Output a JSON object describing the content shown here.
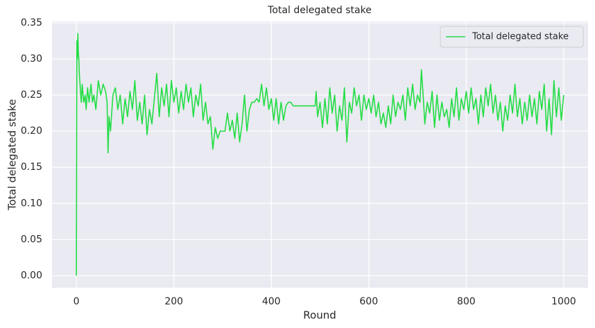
{
  "chart_data": {
    "type": "line",
    "title": "Total delegated stake",
    "x_label": "Round",
    "y_label": "Total delegated stake",
    "x": [
      0,
      1,
      2,
      3,
      4,
      5,
      6,
      8,
      10,
      12,
      15,
      18,
      20,
      23,
      26,
      30,
      33,
      36,
      40,
      45,
      50,
      55,
      60,
      63,
      65,
      67,
      70,
      75,
      80,
      85,
      90,
      95,
      100,
      105,
      110,
      115,
      120,
      125,
      130,
      135,
      140,
      145,
      150,
      155,
      160,
      165,
      170,
      175,
      180,
      185,
      190,
      195,
      200,
      205,
      210,
      215,
      220,
      225,
      230,
      235,
      240,
      245,
      250,
      255,
      260,
      265,
      270,
      275,
      280,
      285,
      290,
      295,
      300,
      305,
      310,
      315,
      320,
      325,
      330,
      335,
      340,
      345,
      350,
      355,
      360,
      365,
      370,
      375,
      380,
      385,
      390,
      395,
      400,
      405,
      410,
      415,
      420,
      425,
      430,
      435,
      440,
      445,
      450,
      460,
      470,
      480,
      490,
      492,
      495,
      500,
      505,
      510,
      515,
      520,
      525,
      530,
      535,
      540,
      545,
      550,
      555,
      560,
      565,
      570,
      575,
      580,
      585,
      590,
      595,
      600,
      605,
      610,
      615,
      620,
      625,
      630,
      635,
      640,
      645,
      650,
      655,
      660,
      665,
      670,
      675,
      680,
      685,
      690,
      695,
      700,
      705,
      708,
      712,
      715,
      720,
      725,
      730,
      735,
      740,
      745,
      750,
      755,
      760,
      765,
      770,
      775,
      780,
      785,
      790,
      795,
      800,
      805,
      810,
      815,
      820,
      825,
      830,
      835,
      840,
      845,
      850,
      855,
      860,
      865,
      870,
      875,
      880,
      885,
      890,
      895,
      900,
      905,
      910,
      915,
      920,
      925,
      930,
      935,
      940,
      945,
      950,
      955,
      960,
      965,
      970,
      975,
      980,
      985,
      990,
      995,
      1000
    ],
    "series": [
      {
        "name": "Total delegated stake",
        "color": "#22dd44",
        "values": [
          0,
          0.325,
          0.3,
          0.335,
          0.31,
          0.3,
          0.28,
          0.26,
          0.24,
          0.265,
          0.24,
          0.25,
          0.23,
          0.26,
          0.24,
          0.265,
          0.24,
          0.25,
          0.23,
          0.27,
          0.25,
          0.265,
          0.255,
          0.24,
          0.17,
          0.22,
          0.2,
          0.25,
          0.26,
          0.23,
          0.25,
          0.21,
          0.245,
          0.22,
          0.255,
          0.23,
          0.27,
          0.215,
          0.24,
          0.21,
          0.25,
          0.195,
          0.23,
          0.21,
          0.245,
          0.28,
          0.22,
          0.26,
          0.235,
          0.265,
          0.22,
          0.27,
          0.24,
          0.26,
          0.225,
          0.255,
          0.23,
          0.265,
          0.24,
          0.26,
          0.22,
          0.25,
          0.235,
          0.265,
          0.215,
          0.24,
          0.21,
          0.22,
          0.175,
          0.205,
          0.19,
          0.2,
          0.2,
          0.2,
          0.225,
          0.2,
          0.215,
          0.19,
          0.225,
          0.185,
          0.21,
          0.25,
          0.2,
          0.23,
          0.24,
          0.24,
          0.245,
          0.24,
          0.265,
          0.235,
          0.26,
          0.23,
          0.245,
          0.215,
          0.245,
          0.21,
          0.24,
          0.215,
          0.235,
          0.24,
          0.24,
          0.235,
          0.235,
          0.235,
          0.235,
          0.235,
          0.235,
          0.255,
          0.22,
          0.24,
          0.205,
          0.245,
          0.21,
          0.26,
          0.225,
          0.25,
          0.2,
          0.235,
          0.215,
          0.26,
          0.185,
          0.24,
          0.225,
          0.26,
          0.235,
          0.25,
          0.215,
          0.25,
          0.23,
          0.245,
          0.225,
          0.25,
          0.22,
          0.24,
          0.21,
          0.225,
          0.205,
          0.235,
          0.21,
          0.25,
          0.22,
          0.24,
          0.23,
          0.25,
          0.215,
          0.26,
          0.235,
          0.265,
          0.23,
          0.25,
          0.24,
          0.285,
          0.245,
          0.21,
          0.24,
          0.225,
          0.255,
          0.205,
          0.25,
          0.215,
          0.24,
          0.22,
          0.23,
          0.205,
          0.245,
          0.22,
          0.26,
          0.215,
          0.245,
          0.23,
          0.255,
          0.225,
          0.26,
          0.23,
          0.245,
          0.21,
          0.25,
          0.22,
          0.26,
          0.235,
          0.265,
          0.225,
          0.25,
          0.215,
          0.24,
          0.2,
          0.235,
          0.215,
          0.25,
          0.225,
          0.265,
          0.22,
          0.245,
          0.21,
          0.24,
          0.215,
          0.25,
          0.22,
          0.245,
          0.21,
          0.255,
          0.23,
          0.265,
          0.2,
          0.245,
          0.195,
          0.27,
          0.22,
          0.26,
          0.215,
          0.25
        ]
      }
    ],
    "xlim": [
      -50,
      1050
    ],
    "xticks": [
      0,
      200,
      400,
      600,
      800,
      1000
    ],
    "ylim": [
      -0.01675,
      0.35175
    ],
    "yticks": [
      {
        "value": 0,
        "label": "0.00"
      },
      0.05,
      {
        "value": 0.1,
        "label": "0.10"
      },
      0.15,
      {
        "value": 0.2,
        "label": "0.20"
      },
      0.25,
      {
        "value": 0.3,
        "label": "0.30"
      },
      0.35
    ],
    "grid": true,
    "legend": "upper right"
  }
}
